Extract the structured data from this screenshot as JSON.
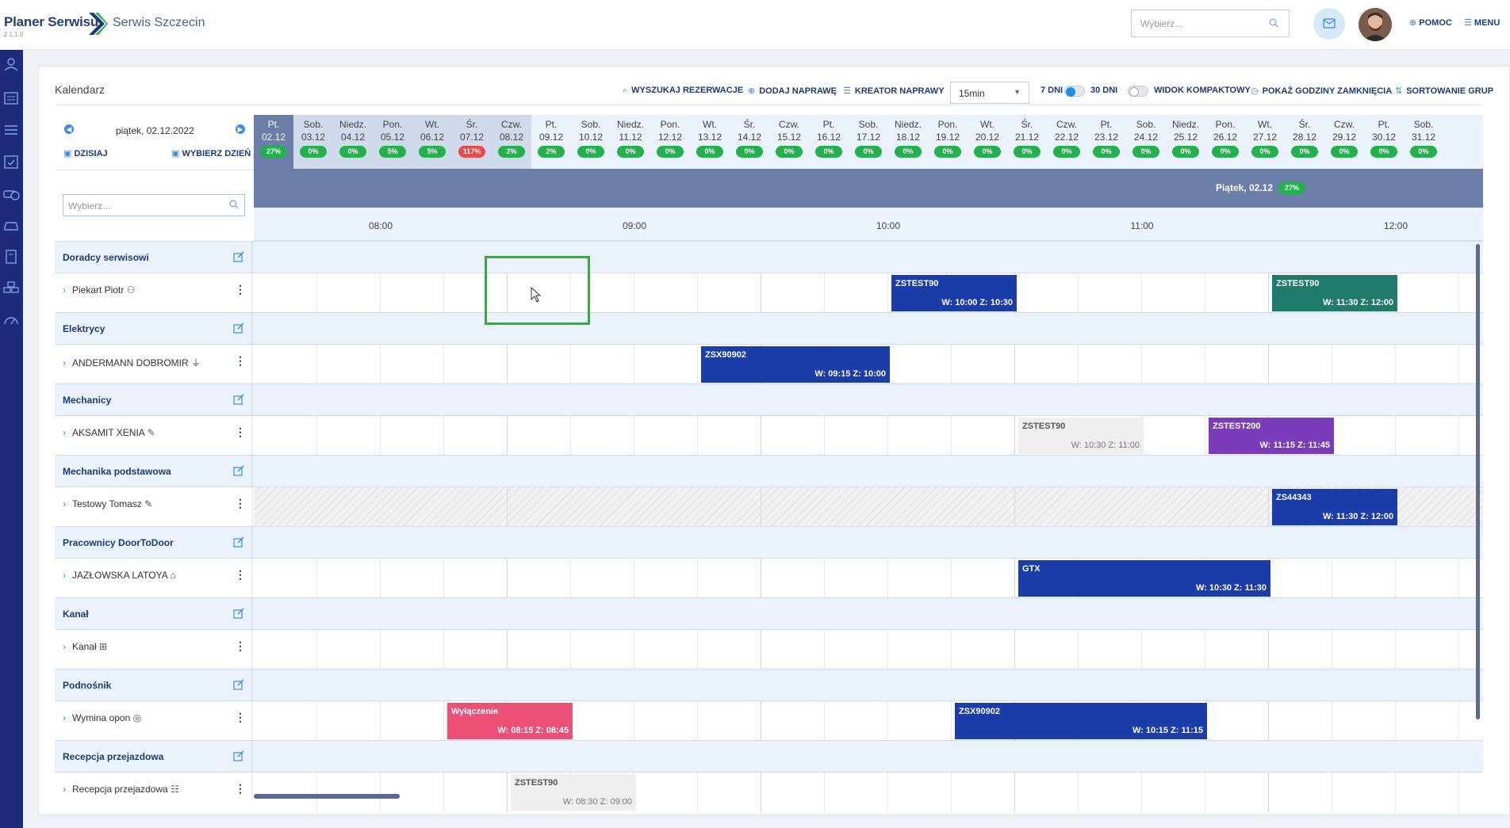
{
  "app": {
    "title": "Planer Serwisu",
    "version": "2.1.1.0",
    "subtitle": "Serwis Szczecin"
  },
  "header": {
    "search_placeholder": "Wybierz...",
    "help_label": "POMOC",
    "menu_label": "MENU"
  },
  "page": {
    "title": "Kalendarz"
  },
  "toolbar": {
    "search_res_label": "WYSZUKAJ REZERWACJE",
    "add_repair_label": "DODAJ NAPRAWĘ",
    "wizard_label": "KREATOR NAPRAWY",
    "interval_value": "15min",
    "days7_label": "7 DNI",
    "days30_label": "30 DNI",
    "compact_label": "WIDOK KOMPAKTOWY",
    "closing_hours_label": "POKAŻ GODZINY ZAMKNIĘCIA",
    "sort_groups_label": "SORTOWANIE GRUP"
  },
  "nav": {
    "date": "piątek, 02.12.2022",
    "today_label": "DZISIAJ",
    "pick_day_label": "WYBIERZ DZIEŃ",
    "search_placeholder": "Wybierz..."
  },
  "days": [
    {
      "name": "Pt.",
      "date": "02.12",
      "pct": "27%"
    },
    {
      "name": "Sob.",
      "date": "03.12",
      "pct": "0%"
    },
    {
      "name": "Niedz.",
      "date": "04.12",
      "pct": "0%"
    },
    {
      "name": "Pon.",
      "date": "05.12",
      "pct": "5%"
    },
    {
      "name": "Wt.",
      "date": "06.12",
      "pct": "5%"
    },
    {
      "name": "Śr.",
      "date": "07.12",
      "pct": "117%"
    },
    {
      "name": "Czw.",
      "date": "08.12",
      "pct": "2%"
    },
    {
      "name": "Pt.",
      "date": "09.12",
      "pct": "2%"
    },
    {
      "name": "Sob.",
      "date": "10.12",
      "pct": "0%"
    },
    {
      "name": "Niedz.",
      "date": "11.12",
      "pct": "0%"
    },
    {
      "name": "Pon.",
      "date": "12.12",
      "pct": "0%"
    },
    {
      "name": "Wt.",
      "date": "13.12",
      "pct": "0%"
    },
    {
      "name": "Śr.",
      "date": "14.12",
      "pct": "0%"
    },
    {
      "name": "Czw.",
      "date": "15.12",
      "pct": "0%"
    },
    {
      "name": "Pt.",
      "date": "16.12",
      "pct": "0%"
    },
    {
      "name": "Sob.",
      "date": "17.12",
      "pct": "0%"
    },
    {
      "name": "Niedz.",
      "date": "18.12",
      "pct": "0%"
    },
    {
      "name": "Pon.",
      "date": "19.12",
      "pct": "0%"
    },
    {
      "name": "Wt.",
      "date": "20.12",
      "pct": "0%"
    },
    {
      "name": "Śr.",
      "date": "21.12",
      "pct": "0%"
    },
    {
      "name": "Czw.",
      "date": "22.12",
      "pct": "0%"
    },
    {
      "name": "Pt.",
      "date": "23.12",
      "pct": "0%"
    },
    {
      "name": "Sob.",
      "date": "24.12",
      "pct": "0%"
    },
    {
      "name": "Niedz.",
      "date": "25.12",
      "pct": "0%"
    },
    {
      "name": "Pon.",
      "date": "26.12",
      "pct": "0%"
    },
    {
      "name": "Wt.",
      "date": "27.12",
      "pct": "0%"
    },
    {
      "name": "Śr.",
      "date": "28.12",
      "pct": "0%"
    },
    {
      "name": "Czw.",
      "date": "29.12",
      "pct": "0%"
    },
    {
      "name": "Pt.",
      "date": "30.12",
      "pct": "0%"
    },
    {
      "name": "Sob.",
      "date": "31.12",
      "pct": "0%"
    }
  ],
  "day_header": {
    "label": "Piątek, 02.12",
    "pct": "27%"
  },
  "hours": [
    "08:00",
    "09:00",
    "10:00",
    "11:00",
    "12:00"
  ],
  "groups": [
    {
      "name": "Doradcy serwisowi",
      "resource": "Piekart Piotr",
      "resource_icon": "person-icon",
      "events": [
        {
          "code": "ZSTEST90",
          "time": "W: 10:00 Z: 10:30",
          "color": "blue"
        },
        {
          "code": "ZSTEST90",
          "time": "W: 11:30 Z: 12:00",
          "color": "green"
        }
      ]
    },
    {
      "name": "Elektrycy",
      "resource": "ANDERMANN DOBROMIR",
      "resource_icon": "plug-icon",
      "events": [
        {
          "code": "ZSX90902",
          "time": "W: 09:15 Z: 10:00",
          "color": "blue"
        }
      ]
    },
    {
      "name": "Mechanicy",
      "resource": "AKSAMIT XENIA",
      "resource_icon": "tools-icon",
      "events": [
        {
          "code": "ZSTEST90",
          "time": "W: 10:30 Z: 11:00",
          "color": "grey"
        },
        {
          "code": "ZSTEST200",
          "time": "W: 11:15 Z: 11:45",
          "color": "purple"
        }
      ]
    },
    {
      "name": "Mechanika podstawowa",
      "resource": "Testowy Tomasz",
      "resource_icon": "tools-icon",
      "events": [
        {
          "code": "ZS44343",
          "time": "W: 11:30 Z: 12:00",
          "color": "blue"
        }
      ]
    },
    {
      "name": "Pracownicy DoorToDoor",
      "resource": "JAZŁOWSKA LATOYA",
      "resource_icon": "building-icon",
      "events": [
        {
          "code": "GTX",
          "time": "W: 10:30 Z: 11:30",
          "color": "blue"
        }
      ]
    },
    {
      "name": "Kanał",
      "resource": "Kanał",
      "resource_icon": "pit-icon",
      "events": []
    },
    {
      "name": "Podnośnik",
      "resource": "Wymina opon",
      "resource_icon": "tire-icon",
      "events": [
        {
          "code": "Wyłączenie",
          "time": "W: 08:15 Z: 08:45",
          "color": "pink"
        },
        {
          "code": "ZSX90902",
          "time": "W: 10:15 Z: 11:15",
          "color": "blue"
        }
      ]
    },
    {
      "name": "Recepcja przejazdowa",
      "resource": "Recepcja przejazdowa",
      "resource_icon": "list-icon",
      "events": [
        {
          "code": "ZSTEST90",
          "time": "W: 08:30 Z: 09:00",
          "color": "grey"
        }
      ]
    }
  ],
  "colors": {
    "sidebar": "#1e2a7a",
    "accent": "#3b8be0",
    "selected_day": "#6a7ea8",
    "ok": "#22b14c",
    "overload": "#e84b4b"
  }
}
